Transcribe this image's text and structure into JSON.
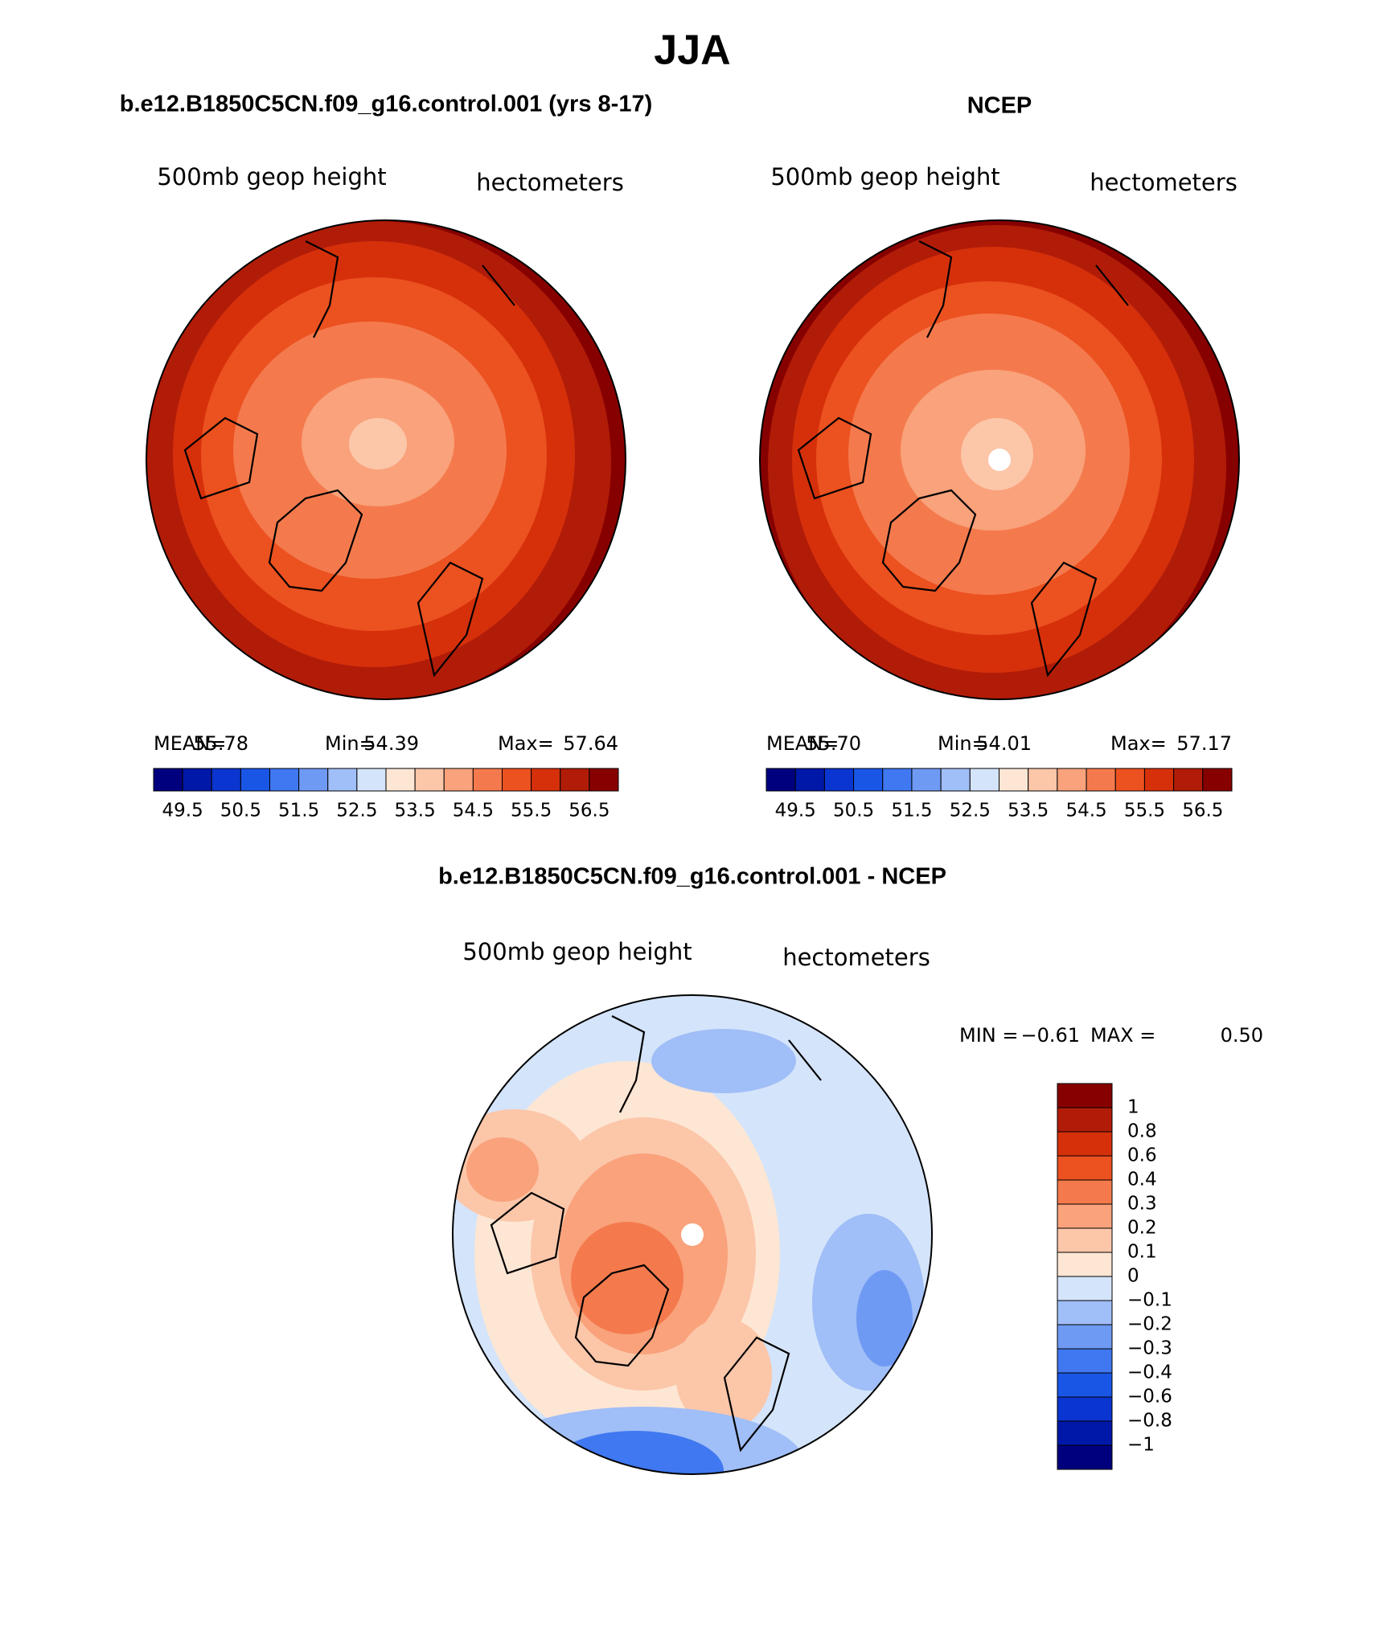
{
  "header": {
    "title": "JJA"
  },
  "palette": [
    "#00007f",
    "#0018a8",
    "#0a35d0",
    "#1a56e6",
    "#3f78f0",
    "#6f9af4",
    "#a0bef7",
    "#d4e4fa",
    "#fde6d4",
    "#fcc6a9",
    "#f9a27b",
    "#f47a4d",
    "#ec5120",
    "#d6300b",
    "#b11c08",
    "#870000"
  ],
  "panels": [
    {
      "title": "b.e12.B1850C5CN.f09_g16.control.001 (yrs 8-17)",
      "variable": "500mb geop height",
      "units": "hectometers",
      "stats": [
        "MEAN=",
        "55.78",
        "Min=",
        "54.39",
        "Max=",
        "57.64"
      ],
      "colorbar_labels": [
        "49.5",
        "50.5",
        "51.5",
        "52.5",
        "53.5",
        "54.5",
        "55.5",
        "56.5"
      ]
    },
    {
      "title": "NCEP",
      "variable": "500mb geop height",
      "units": "hectometers",
      "stats": [
        "MEAN=",
        "55.70",
        "Min=",
        "54.01",
        "Max=",
        "57.17"
      ],
      "colorbar_labels": [
        "49.5",
        "50.5",
        "51.5",
        "52.5",
        "53.5",
        "54.5",
        "55.5",
        "56.5"
      ]
    }
  ],
  "difference": {
    "title": "b.e12.B1850C5CN.f09_g16.control.001 - NCEP",
    "variable": "500mb geop height",
    "units": "hectometers",
    "stats": [
      "MIN =",
      "−0.61",
      "MAX =",
      "0.50"
    ],
    "colorbar_labels": [
      "1",
      "0.8",
      "0.6",
      "0.4",
      "0.3",
      "0.2",
      "0.1",
      "0",
      "−0.1",
      "−0.2",
      "−0.3",
      "−0.4",
      "−0.6",
      "−0.8",
      "−1"
    ]
  }
}
